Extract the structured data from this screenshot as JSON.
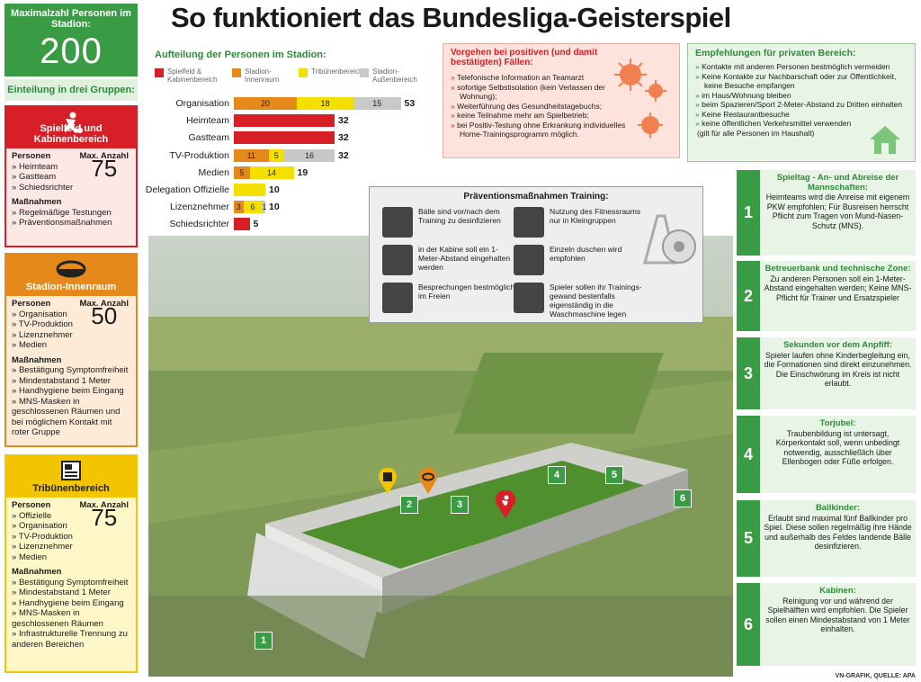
{
  "title": "So funktioniert das Bundesliga-Geisterspiel",
  "max": {
    "label": "Maximalzahl Personen im Stadion:",
    "value": "200"
  },
  "groups_label": "Einteilung in drei Gruppen:",
  "zones": [
    {
      "title": "Spielfeld und Kabinenbereich",
      "persons_label": "Personen",
      "max_label": "Max. Anzahl",
      "max_value": "75",
      "persons": [
        "Heimteam",
        "Gastteam",
        "Schiedsrichter"
      ],
      "measures_label": "Maßnahmen",
      "measures": [
        "Regelmäßige Testungen",
        "Präventionsmaßnahmen"
      ],
      "color": "#d61f26"
    },
    {
      "title": "Stadion-Innenraum",
      "persons_label": "Personen",
      "max_label": "Max. Anzahl",
      "max_value": "50",
      "persons": [
        "Organisation",
        "TV-Produktion",
        "Lizenznehmer",
        "Medien"
      ],
      "measures_label": "Maßnahmen",
      "measures": [
        "Bestätigung Symptomfreiheit",
        "Mindestabstand 1 Meter",
        "Handhygiene beim Eingang",
        "MNS-Masken in geschlossenen Räumen und bei möglichem Kontakt mit roter Gruppe"
      ],
      "color": "#e58a1a"
    },
    {
      "title": "Tribünenbereich",
      "persons_label": "Personen",
      "max_label": "Max. Anzahl",
      "max_value": "75",
      "persons": [
        "Offizielle",
        "Organisation",
        "TV-Produktion",
        "Lizenznehmer",
        "Medien"
      ],
      "measures_label": "Maßnahmen",
      "measures": [
        "Bestätigung Symptomfreiheit",
        "Mindestabstand 1 Meter",
        "Handhygiene beim Eingang",
        "MNS-Masken in geschlossenen Räumen",
        "Infrastrukturelle Trennung zu anderen Bereichen"
      ],
      "color": "#f3c400"
    }
  ],
  "chart_data": {
    "type": "bar",
    "title": "Aufteilung der Personen im Stadion:",
    "legend": [
      "Spielfeld & Kabinenbereich",
      "Stadion-Innenraum",
      "Tribünenbereich",
      "Stadion-Außenbereich"
    ],
    "colors": [
      "#d61f26",
      "#e58a1a",
      "#f3e000",
      "#c8c8c8"
    ],
    "categories": [
      "Organisation",
      "Heimteam",
      "Gastteam",
      "TV-Produktion",
      "Medien",
      "Delegation Offizielle",
      "Lizenznehmer",
      "Schiedsrichter"
    ],
    "series": [
      {
        "name": "Spielfeld & Kabinenbereich",
        "values": [
          0,
          32,
          32,
          0,
          0,
          0,
          0,
          5
        ]
      },
      {
        "name": "Stadion-Innenraum",
        "values": [
          20,
          0,
          0,
          11,
          5,
          0,
          3,
          0
        ]
      },
      {
        "name": "Tribünenbereich",
        "values": [
          18,
          0,
          0,
          5,
          14,
          10,
          6,
          0
        ]
      },
      {
        "name": "Stadion-Außenbereich",
        "values": [
          15,
          0,
          0,
          16,
          0,
          0,
          1,
          0
        ]
      }
    ],
    "totals": [
      53,
      32,
      32,
      32,
      19,
      10,
      10,
      5
    ]
  },
  "positive": {
    "heading": "Vorgehen bei positiven (und damit bestätigten) Fällen:",
    "items": [
      "Telefonische Information an Teamarzt",
      "sofortige Selbstisolation (kein Verlassen der Wohnung);",
      "Weiterführung des Gesundheitstagebuchs;",
      "keine Teilnahme mehr am Spielbetrieb;",
      "bei Positiv-Testung ohne Erkrankung individuelles Home-Trainingsprogramm möglich."
    ]
  },
  "private": {
    "heading": "Empfehlungen für privaten Bereich:",
    "items": [
      "Kontakte mit anderen Personen bestmöglich vermeiden",
      "Keine Kontakte zur Nachbarschaft oder zur Öffentlichkeit, keine Besuche empfangen",
      "im Haus/Wohnung bleiben",
      "beim Spazieren/Sport 2-Meter-Abstand zu Dritten einhalten",
      "Keine Restaurantbesuche",
      "keine öffentlichen Verkehrsmittel verwenden"
    ],
    "note": "(gilt für alle Personen im Haushalt)"
  },
  "training": {
    "heading": "Präventionsmaßnahmen Training:",
    "items": [
      {
        "text": "Bälle sind vor/nach dem Training zu desinfizieren",
        "icon": "ball-icon"
      },
      {
        "text": "Nutzung des Fitnessraums nur in Kleingruppen",
        "icon": "treadmill-icon"
      },
      {
        "text": "in der Kabine soll ein 1-Meter-Abstand eingehalten werden",
        "icon": "distance-icon"
      },
      {
        "text": "Einzeln duschen wird empfohlen",
        "icon": "shower-icon"
      },
      {
        "text": "Besprechungen bestmöglich im Freien",
        "icon": "weather-icon"
      },
      {
        "text": "Spieler sollen ihr Trainings-gewand bestenfalls eigenständig in die Waschmaschine legen",
        "icon": "washing-machine-icon"
      }
    ]
  },
  "cards": [
    {
      "num": "1",
      "title": "Spieltag - An- und Abreise der Mannschaften:",
      "text": "Heimteams wird die Anreise mit eigenem PKW empfohlen; Für Busreisen herrscht Pflicht zum Tragen von Mund-Nasen-Schutz (MNS)."
    },
    {
      "num": "2",
      "title": "Betreuerbank und technische Zone:",
      "text": "Zu anderen Personen soll ein 1-Meter-Abstand eingehalten werden; Keine MNS-Pflicht für Trainer und Ersatzspieler"
    },
    {
      "num": "3",
      "title": "Sekunden vor dem Anpfiff:",
      "text": "Spieler laufen ohne Kinderbegleitung ein, die Formationen sind direkt einzunehmen. Die Einschwörung im Kreis ist nicht erlaubt."
    },
    {
      "num": "4",
      "title": "Torjubel:",
      "text": "Traubenbildung ist untersagt, Körperkontakt soll, wenn unbedingt notwendig, ausschließlich über Ellenbogen oder Füße erfolgen."
    },
    {
      "num": "5",
      "title": "Ballkinder:",
      "text": "Erlaubt sind maximal fünf Ballkinder pro Spiel. Diese sollen regelmäßig ihre Hände und außerhalb des Feldes landende Bälle desinfizieren."
    },
    {
      "num": "6",
      "title": "Kabinen:",
      "text": "Reinigung vor und während der Spielhälften wird empfohlen. Die Spieler sollen einen Mindestabstand von 1 Meter einhalten."
    }
  ],
  "map_markers": [
    "1",
    "2",
    "3",
    "4",
    "5",
    "6"
  ],
  "credit": "VN-GRAFIK, QUELLE: APA"
}
